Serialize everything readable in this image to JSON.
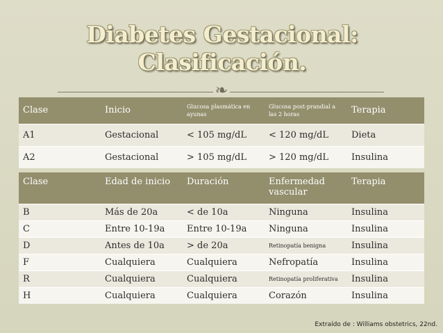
{
  "title": {
    "line1": "Diabetes Gestacional:",
    "line2": "Clasificación."
  },
  "ornament_icon": "scroll-ornament",
  "table1": {
    "headers": [
      "Clase",
      "Inicio",
      "Glucosa plasmática en ayunas",
      "Glucosa post-prandial a las 2 horas",
      "Terapia"
    ],
    "rows": [
      [
        "A1",
        "Gestacional",
        "< 105 mg/dL",
        "< 120 mg/dL",
        "Dieta"
      ],
      [
        "A2",
        "Gestacional",
        "> 105 mg/dL",
        "> 120 mg/dL",
        "Insulina"
      ]
    ]
  },
  "table2": {
    "headers": [
      "Clase",
      "Edad de inicio",
      "Duración",
      "Enfermedad vascular",
      "Terapia"
    ],
    "rows": [
      [
        "B",
        "Más de 20a",
        "< de 10a",
        "Ninguna",
        "Insulina"
      ],
      [
        "C",
        "Entre 10-19a",
        "Entre 10-19a",
        "Ninguna",
        "Insulina"
      ],
      [
        "D",
        "Antes de 10a",
        "> de 20a",
        "Retinopatía benigna",
        "Insulina"
      ],
      [
        "F",
        "Cualquiera",
        "Cualquiera",
        "Nefropatía",
        "Insulina"
      ],
      [
        "R",
        "Cualquiera",
        "Cualquiera",
        "Retinopatía proliferativa",
        "Insulina"
      ],
      [
        "H",
        "Cualquiera",
        "Cualquiera",
        "Corazón",
        "Insulina"
      ]
    ]
  },
  "source": "Extraído de : Williams obstetrics, 22nd.",
  "colors": {
    "header_bg": "#938e6c",
    "row_odd": "#ebe9de",
    "row_even": "#f6f5ef",
    "slide_bg": "#d9d8c3"
  }
}
